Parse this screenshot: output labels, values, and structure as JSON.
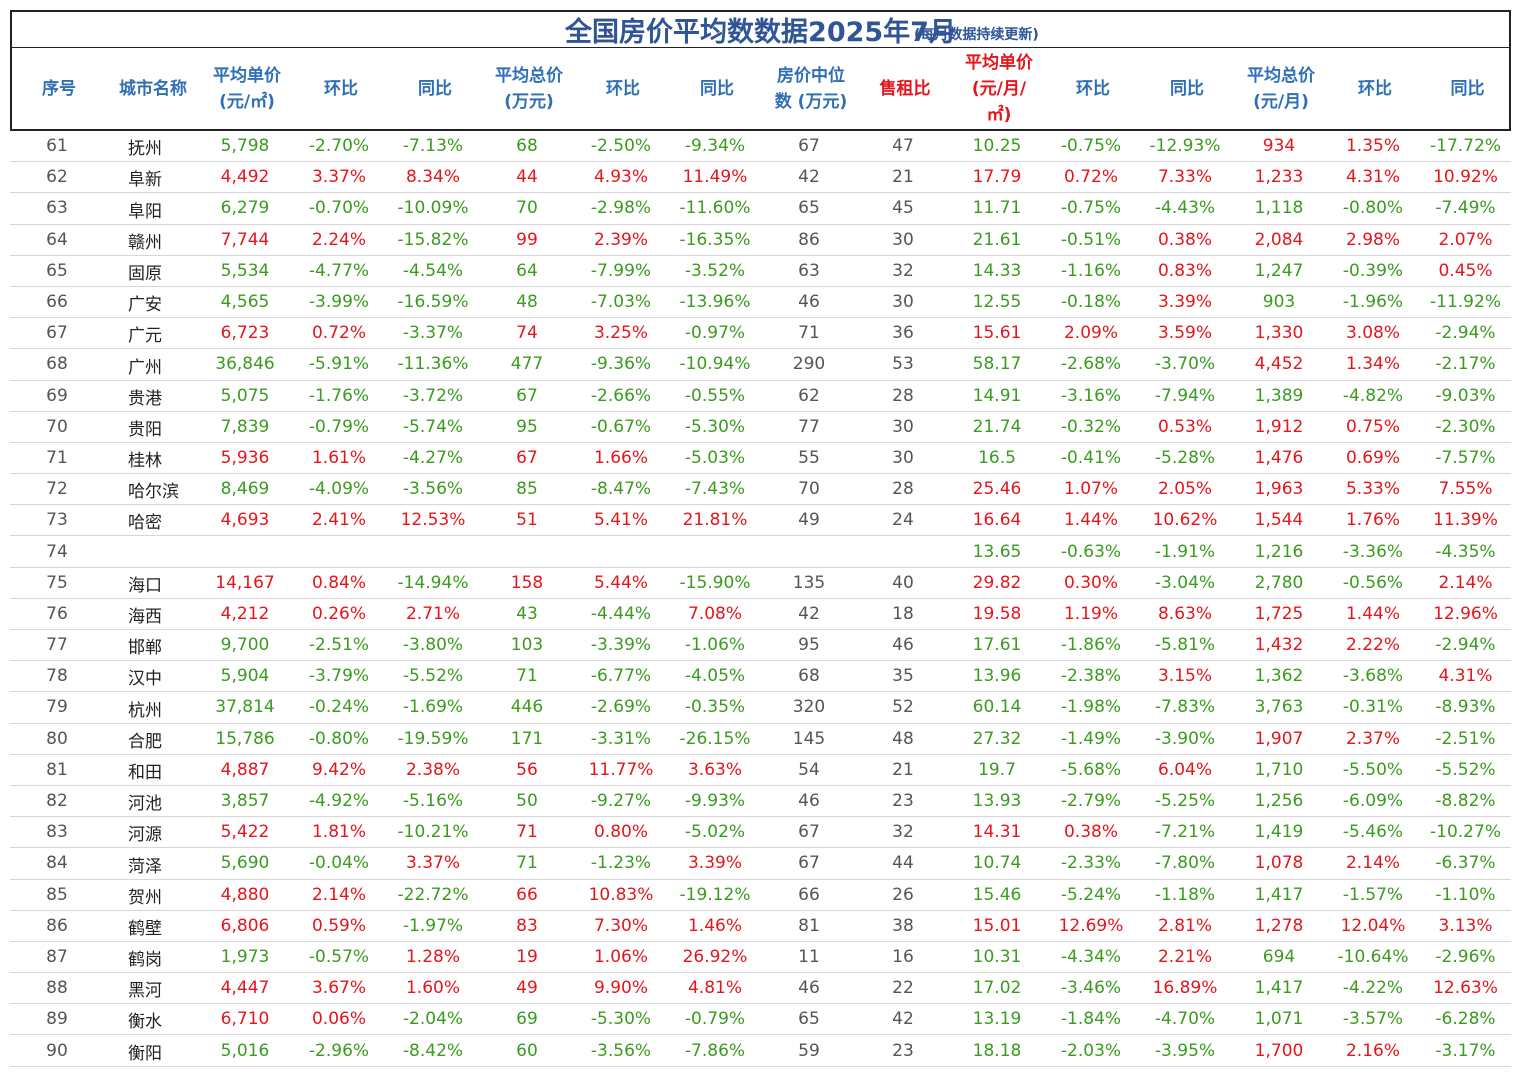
{
  "title": "全国房价平均数数据2025年7月",
  "subtitle": "(每月数据持续更新)",
  "headers": [
    {
      "label": "序号",
      "red": false
    },
    {
      "label": "城市名称",
      "red": false
    },
    {
      "label": "平均单价\n(元/㎡)",
      "red": false
    },
    {
      "label": "环比",
      "red": false
    },
    {
      "label": "同比",
      "red": false
    },
    {
      "label": "平均总价\n(万元)",
      "red": false
    },
    {
      "label": "环比",
      "red": false
    },
    {
      "label": "同比",
      "red": false
    },
    {
      "label": "房价中位\n数 (万元)",
      "red": false
    },
    {
      "label": "售租比",
      "red": true
    },
    {
      "label": "平均单价\n(元/月/\n㎡)",
      "red": true
    },
    {
      "label": "环比",
      "red": false
    },
    {
      "label": "同比",
      "red": false
    },
    {
      "label": "平均总价\n(元/月)",
      "red": false
    },
    {
      "label": "环比",
      "red": false
    },
    {
      "label": "同比",
      "red": false
    }
  ],
  "colors": {
    "up": "#e5151b",
    "down": "#3a9b1f",
    "header": "#2f6fb5",
    "title": "#2f5597"
  },
  "rows": [
    [
      "61",
      "抚州",
      "5,798",
      "-2.70%",
      "-7.13%",
      "68",
      "-2.50%",
      "-9.34%",
      "67",
      "47",
      "10.25",
      "-0.75%",
      "-12.93%",
      "934",
      "1.35%",
      "-17.72%"
    ],
    [
      "62",
      "阜新",
      "4,492",
      "3.37%",
      "8.34%",
      "44",
      "4.93%",
      "11.49%",
      "42",
      "21",
      "17.79",
      "0.72%",
      "7.33%",
      "1,233",
      "4.31%",
      "10.92%"
    ],
    [
      "63",
      "阜阳",
      "6,279",
      "-0.70%",
      "-10.09%",
      "70",
      "-2.98%",
      "-11.60%",
      "65",
      "45",
      "11.71",
      "-0.75%",
      "-4.43%",
      "1,118",
      "-0.80%",
      "-7.49%"
    ],
    [
      "64",
      "赣州",
      "7,744",
      "2.24%",
      "-15.82%",
      "99",
      "2.39%",
      "-16.35%",
      "86",
      "30",
      "21.61",
      "-0.51%",
      "0.38%",
      "2,084",
      "2.98%",
      "2.07%"
    ],
    [
      "65",
      "固原",
      "5,534",
      "-4.77%",
      "-4.54%",
      "64",
      "-7.99%",
      "-3.52%",
      "63",
      "32",
      "14.33",
      "-1.16%",
      "0.83%",
      "1,247",
      "-0.39%",
      "0.45%"
    ],
    [
      "66",
      "广安",
      "4,565",
      "-3.99%",
      "-16.59%",
      "48",
      "-7.03%",
      "-13.96%",
      "46",
      "30",
      "12.55",
      "-0.18%",
      "3.39%",
      "903",
      "-1.96%",
      "-11.92%"
    ],
    [
      "67",
      "广元",
      "6,723",
      "0.72%",
      "-3.37%",
      "74",
      "3.25%",
      "-0.97%",
      "71",
      "36",
      "15.61",
      "2.09%",
      "3.59%",
      "1,330",
      "3.08%",
      "-2.94%"
    ],
    [
      "68",
      "广州",
      "36,846",
      "-5.91%",
      "-11.36%",
      "477",
      "-9.36%",
      "-10.94%",
      "290",
      "53",
      "58.17",
      "-2.68%",
      "-3.70%",
      "4,452",
      "1.34%",
      "-2.17%"
    ],
    [
      "69",
      "贵港",
      "5,075",
      "-1.76%",
      "-3.72%",
      "67",
      "-2.66%",
      "-0.55%",
      "62",
      "28",
      "14.91",
      "-3.16%",
      "-7.94%",
      "1,389",
      "-4.82%",
      "-9.03%"
    ],
    [
      "70",
      "贵阳",
      "7,839",
      "-0.79%",
      "-5.74%",
      "95",
      "-0.67%",
      "-5.30%",
      "77",
      "30",
      "21.74",
      "-0.32%",
      "0.53%",
      "1,912",
      "0.75%",
      "-2.30%"
    ],
    [
      "71",
      "桂林",
      "5,936",
      "1.61%",
      "-4.27%",
      "67",
      "1.66%",
      "-5.03%",
      "55",
      "30",
      "16.5",
      "-0.41%",
      "-5.28%",
      "1,476",
      "0.69%",
      "-7.57%"
    ],
    [
      "72",
      "哈尔滨",
      "8,469",
      "-4.09%",
      "-3.56%",
      "85",
      "-8.47%",
      "-7.43%",
      "70",
      "28",
      "25.46",
      "1.07%",
      "2.05%",
      "1,963",
      "5.33%",
      "7.55%"
    ],
    [
      "73",
      "哈密",
      "4,693",
      "2.41%",
      "12.53%",
      "51",
      "5.41%",
      "21.81%",
      "49",
      "24",
      "16.64",
      "1.44%",
      "10.62%",
      "1,544",
      "1.76%",
      "11.39%"
    ],
    [
      "74",
      "",
      "",
      "",
      "",
      "",
      "",
      "",
      "",
      "",
      "13.65",
      "-0.63%",
      "-1.91%",
      "1,216",
      "-3.36%",
      "-4.35%"
    ],
    [
      "75",
      "海口",
      "14,167",
      "0.84%",
      "-14.94%",
      "158",
      "5.44%",
      "-15.90%",
      "135",
      "40",
      "29.82",
      "0.30%",
      "-3.04%",
      "2,780",
      "-0.56%",
      "2.14%"
    ],
    [
      "76",
      "海西",
      "4,212",
      "0.26%",
      "2.71%",
      "43",
      "-4.44%",
      "7.08%",
      "42",
      "18",
      "19.58",
      "1.19%",
      "8.63%",
      "1,725",
      "1.44%",
      "12.96%"
    ],
    [
      "77",
      "邯郸",
      "9,700",
      "-2.51%",
      "-3.80%",
      "103",
      "-3.39%",
      "-1.06%",
      "95",
      "46",
      "17.61",
      "-1.86%",
      "-5.81%",
      "1,432",
      "2.22%",
      "-2.94%"
    ],
    [
      "78",
      "汉中",
      "5,904",
      "-3.79%",
      "-5.52%",
      "71",
      "-6.77%",
      "-4.05%",
      "68",
      "35",
      "13.96",
      "-2.38%",
      "3.15%",
      "1,362",
      "-3.68%",
      "4.31%"
    ],
    [
      "79",
      "杭州",
      "37,814",
      "-0.24%",
      "-1.69%",
      "446",
      "-2.69%",
      "-0.35%",
      "320",
      "52",
      "60.14",
      "-1.98%",
      "-7.83%",
      "3,763",
      "-0.31%",
      "-8.93%"
    ],
    [
      "80",
      "合肥",
      "15,786",
      "-0.80%",
      "-19.59%",
      "171",
      "-3.31%",
      "-26.15%",
      "145",
      "48",
      "27.32",
      "-1.49%",
      "-3.90%",
      "1,907",
      "2.37%",
      "-2.51%"
    ],
    [
      "81",
      "和田",
      "4,887",
      "9.42%",
      "2.38%",
      "56",
      "11.77%",
      "3.63%",
      "54",
      "21",
      "19.7",
      "-5.68%",
      "6.04%",
      "1,710",
      "-5.50%",
      "-5.52%"
    ],
    [
      "82",
      "河池",
      "3,857",
      "-4.92%",
      "-5.16%",
      "50",
      "-9.27%",
      "-9.93%",
      "46",
      "23",
      "13.93",
      "-2.79%",
      "-5.25%",
      "1,256",
      "-6.09%",
      "-8.82%"
    ],
    [
      "83",
      "河源",
      "5,422",
      "1.81%",
      "-10.21%",
      "71",
      "0.80%",
      "-5.02%",
      "67",
      "32",
      "14.31",
      "0.38%",
      "-7.21%",
      "1,419",
      "-5.46%",
      "-10.27%"
    ],
    [
      "84",
      "菏泽",
      "5,690",
      "-0.04%",
      "3.37%",
      "71",
      "-1.23%",
      "3.39%",
      "67",
      "44",
      "10.74",
      "-2.33%",
      "-7.80%",
      "1,078",
      "2.14%",
      "-6.37%"
    ],
    [
      "85",
      "贺州",
      "4,880",
      "2.14%",
      "-22.72%",
      "66",
      "10.83%",
      "-19.12%",
      "66",
      "26",
      "15.46",
      "-5.24%",
      "-1.18%",
      "1,417",
      "-1.57%",
      "-1.10%"
    ],
    [
      "86",
      "鹤壁",
      "6,806",
      "0.59%",
      "-1.97%",
      "83",
      "7.30%",
      "1.46%",
      "81",
      "38",
      "15.01",
      "12.69%",
      "2.81%",
      "1,278",
      "12.04%",
      "3.13%"
    ],
    [
      "87",
      "鹤岗",
      "1,973",
      "-0.57%",
      "1.28%",
      "19",
      "1.06%",
      "26.92%",
      "11",
      "16",
      "10.31",
      "-4.34%",
      "2.21%",
      "694",
      "-10.64%",
      "-2.96%"
    ],
    [
      "88",
      "黑河",
      "4,447",
      "3.67%",
      "1.60%",
      "49",
      "9.90%",
      "4.81%",
      "46",
      "22",
      "17.02",
      "-3.46%",
      "16.89%",
      "1,417",
      "-4.22%",
      "12.63%"
    ],
    [
      "89",
      "衡水",
      "6,710",
      "0.06%",
      "-2.04%",
      "69",
      "-5.30%",
      "-0.79%",
      "65",
      "42",
      "13.19",
      "-1.84%",
      "-4.70%",
      "1,071",
      "-3.57%",
      "-6.28%"
    ],
    [
      "90",
      "衡阳",
      "5,016",
      "-2.96%",
      "-8.42%",
      "60",
      "-3.56%",
      "-7.86%",
      "59",
      "23",
      "18.18",
      "-2.03%",
      "-3.95%",
      "1,700",
      "2.16%",
      "-3.17%"
    ]
  ]
}
